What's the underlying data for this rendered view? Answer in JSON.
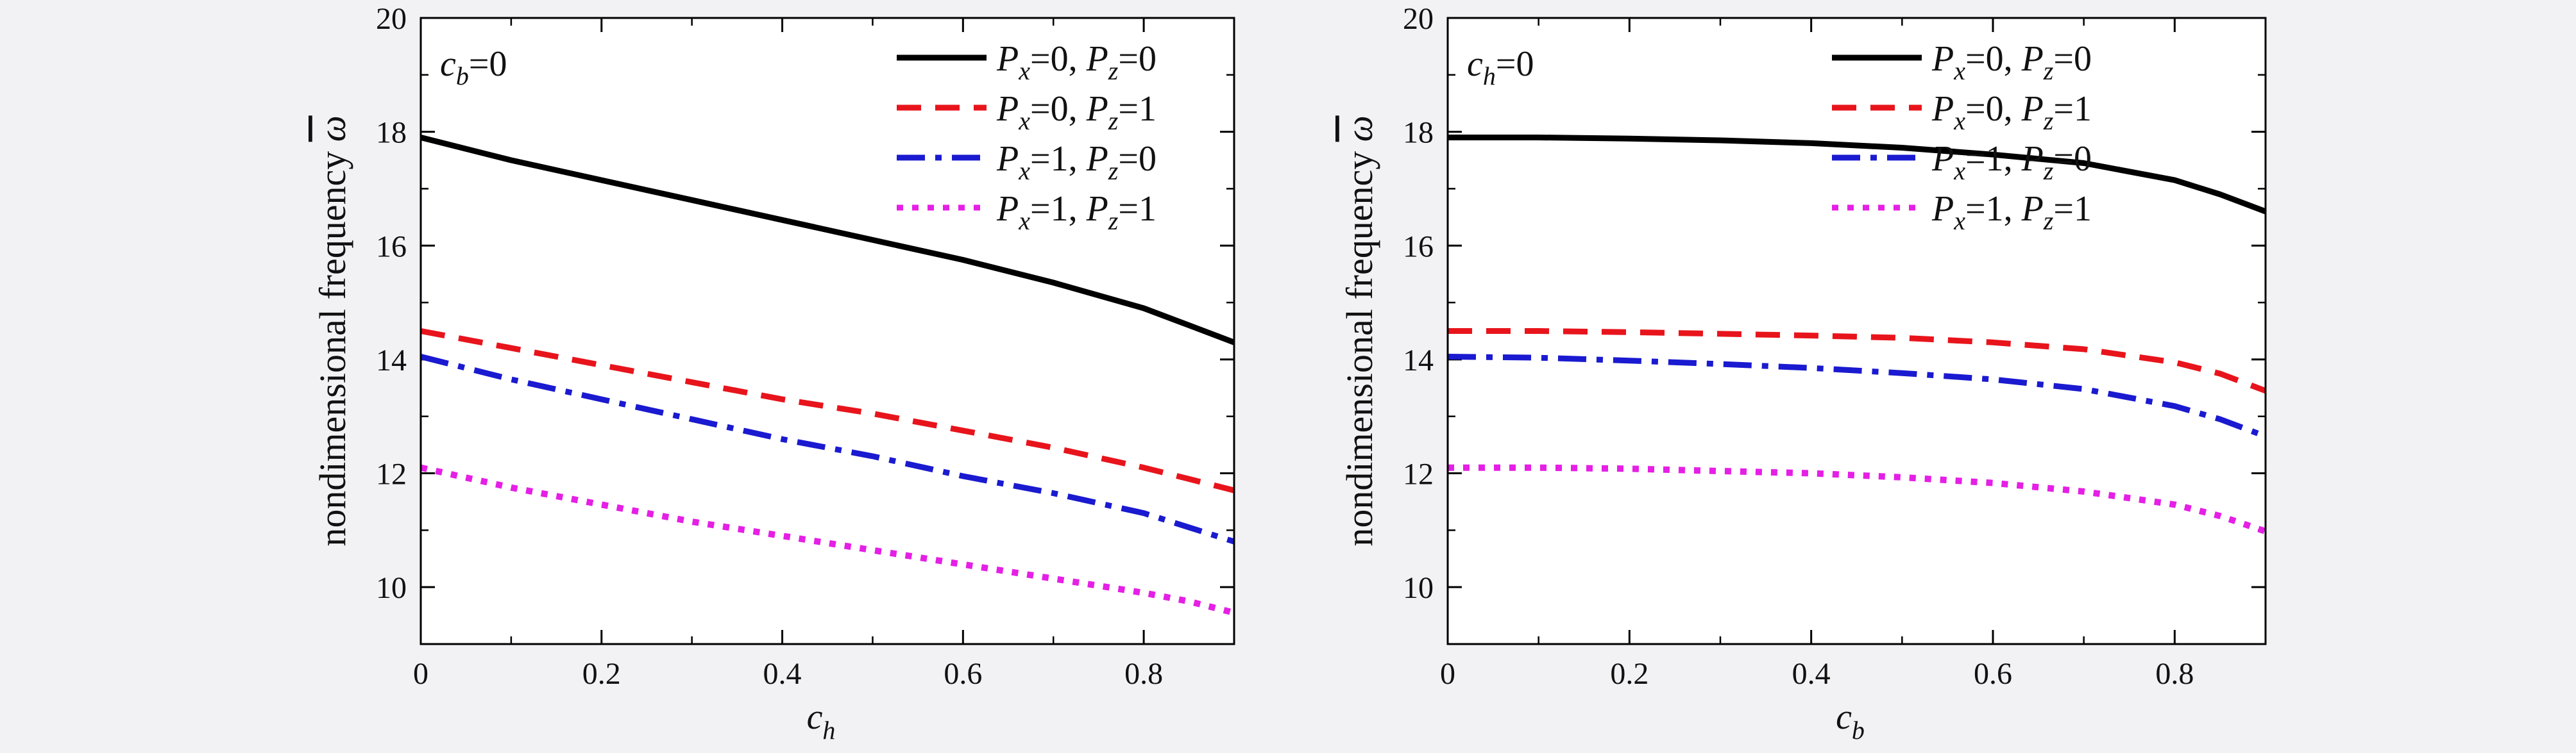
{
  "chart_data": [
    {
      "type": "line",
      "xlabel": "c",
      "xlabel_sub": "h",
      "ylabel": "nondimensional frequency",
      "ylabel_symbol": "ω",
      "annotation": {
        "var": "c",
        "sub": "b",
        "rest": "=0"
      },
      "xlim": [
        0,
        0.9
      ],
      "ylim": [
        9,
        20
      ],
      "xticks": [
        "0",
        "0.2",
        "0.4",
        "0.6",
        "0.8"
      ],
      "yticks": [
        "10",
        "12",
        "14",
        "16",
        "18",
        "20"
      ],
      "legend_position": "top-right",
      "series": [
        {
          "px": "0",
          "pz": "0",
          "color": "#000000",
          "style": "solid",
          "x": [
            0,
            0.1,
            0.2,
            0.3,
            0.4,
            0.5,
            0.6,
            0.7,
            0.8,
            0.85,
            0.9
          ],
          "y": [
            17.9,
            17.5,
            17.15,
            16.8,
            16.45,
            16.1,
            15.75,
            15.35,
            14.9,
            14.6,
            14.3
          ]
        },
        {
          "px": "0",
          "pz": "1",
          "color": "#e8141c",
          "style": "dash",
          "x": [
            0,
            0.1,
            0.2,
            0.3,
            0.4,
            0.5,
            0.6,
            0.7,
            0.8,
            0.85,
            0.9
          ],
          "y": [
            14.5,
            14.2,
            13.9,
            13.6,
            13.3,
            13.05,
            12.75,
            12.45,
            12.1,
            11.9,
            11.7
          ]
        },
        {
          "px": "1",
          "pz": "0",
          "color": "#1a1ad0",
          "style": "dashdot",
          "x": [
            0,
            0.1,
            0.2,
            0.3,
            0.4,
            0.5,
            0.6,
            0.7,
            0.8,
            0.85,
            0.9
          ],
          "y": [
            14.05,
            13.65,
            13.3,
            12.95,
            12.6,
            12.3,
            11.95,
            11.65,
            11.3,
            11.05,
            10.8
          ]
        },
        {
          "px": "1",
          "pz": "1",
          "color": "#e51fe5",
          "style": "dot",
          "x": [
            0,
            0.1,
            0.2,
            0.3,
            0.4,
            0.5,
            0.6,
            0.7,
            0.8,
            0.85,
            0.9
          ],
          "y": [
            12.1,
            11.75,
            11.45,
            11.15,
            10.9,
            10.65,
            10.4,
            10.15,
            9.9,
            9.75,
            9.55
          ]
        }
      ]
    },
    {
      "type": "line",
      "xlabel": "c",
      "xlabel_sub": "b",
      "ylabel": "nondimensional frequency",
      "ylabel_symbol": "ω",
      "annotation": {
        "var": "c",
        "sub": "h",
        "rest": "=0"
      },
      "xlim": [
        0,
        0.9
      ],
      "ylim": [
        9,
        20
      ],
      "xticks": [
        "0",
        "0.2",
        "0.4",
        "0.6",
        "0.8"
      ],
      "yticks": [
        "10",
        "12",
        "14",
        "16",
        "18",
        "20"
      ],
      "legend_position": "top-right",
      "series": [
        {
          "px": "0",
          "pz": "0",
          "color": "#000000",
          "style": "solid",
          "x": [
            0,
            0.1,
            0.2,
            0.3,
            0.4,
            0.5,
            0.6,
            0.7,
            0.8,
            0.85,
            0.9
          ],
          "y": [
            17.9,
            17.9,
            17.88,
            17.85,
            17.8,
            17.72,
            17.6,
            17.45,
            17.15,
            16.9,
            16.6
          ]
        },
        {
          "px": "0",
          "pz": "1",
          "color": "#e8141c",
          "style": "dash",
          "x": [
            0,
            0.1,
            0.2,
            0.3,
            0.4,
            0.5,
            0.6,
            0.7,
            0.8,
            0.85,
            0.9
          ],
          "y": [
            14.5,
            14.5,
            14.48,
            14.45,
            14.42,
            14.38,
            14.3,
            14.18,
            13.95,
            13.75,
            13.45
          ]
        },
        {
          "px": "1",
          "pz": "0",
          "color": "#1a1ad0",
          "style": "dashdot",
          "x": [
            0,
            0.1,
            0.2,
            0.3,
            0.4,
            0.5,
            0.6,
            0.7,
            0.8,
            0.85,
            0.9
          ],
          "y": [
            14.05,
            14.03,
            13.98,
            13.92,
            13.85,
            13.76,
            13.65,
            13.48,
            13.18,
            12.95,
            12.65
          ]
        },
        {
          "px": "1",
          "pz": "1",
          "color": "#e51fe5",
          "style": "dot",
          "x": [
            0,
            0.1,
            0.2,
            0.3,
            0.4,
            0.5,
            0.6,
            0.7,
            0.8,
            0.85,
            0.9
          ],
          "y": [
            12.1,
            12.1,
            12.08,
            12.04,
            12.0,
            11.93,
            11.83,
            11.68,
            11.45,
            11.25,
            10.98
          ]
        }
      ]
    }
  ]
}
